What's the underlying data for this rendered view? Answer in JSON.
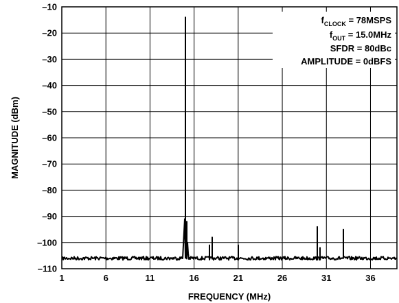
{
  "chart_data": {
    "type": "line",
    "title": "",
    "xlabel": "FREQUENCY (MHz)",
    "ylabel": "MAGNITUDE (dBm)",
    "xlim": [
      1,
      39
    ],
    "ylim": [
      -110,
      -10
    ],
    "xticks": [
      1,
      6,
      11,
      16,
      21,
      26,
      31,
      36
    ],
    "yticks": [
      -10,
      -20,
      -30,
      -40,
      -50,
      -60,
      -70,
      -80,
      -90,
      -100,
      -110
    ],
    "xtick_labels": [
      "1",
      "6",
      "11",
      "16",
      "21",
      "26",
      "31",
      "36"
    ],
    "ytick_labels": [
      "–10",
      "–20",
      "–30",
      "–40",
      "–50",
      "–60",
      "–70",
      "–80",
      "–90",
      "–100",
      "–110"
    ],
    "grid": true,
    "noise_floor": -106,
    "series": [
      {
        "color": "#000000",
        "x": [
          15.0,
          15.15,
          17.75,
          18.05,
          21.0,
          29.95,
          30.3,
          32.95
        ],
        "y": [
          -14,
          -92,
          -101,
          -98,
          -101,
          -94,
          -102,
          -95
        ]
      }
    ],
    "annotations": [
      {
        "prefix": "f",
        "subscript": "CLOCK",
        "text": " = 78MSPS"
      },
      {
        "prefix": "f",
        "subscript": "OUT",
        "text": " = 15.0MHz"
      },
      {
        "prefix": "",
        "subscript": "",
        "text": "SFDR = 80dBc"
      },
      {
        "prefix": "",
        "subscript": "",
        "text": "AMPLITUDE = 0dBFS"
      }
    ]
  }
}
